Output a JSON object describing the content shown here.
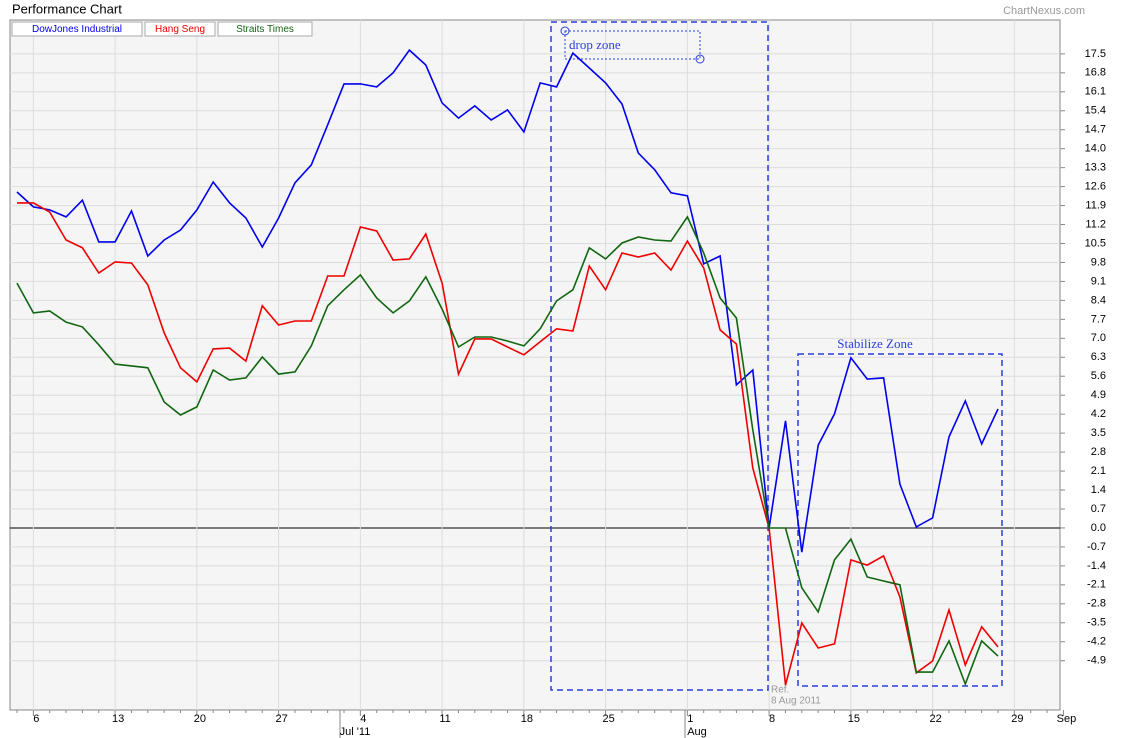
{
  "chart_data": {
    "type": "line",
    "title": "Performance Chart",
    "source": "ChartNexus.com",
    "categories": [
      null,
      "6",
      null,
      null,
      null,
      null,
      "13",
      null,
      null,
      null,
      null,
      "20",
      null,
      null,
      null,
      null,
      "27",
      null,
      null,
      null,
      null,
      "4",
      null,
      null,
      null,
      null,
      "11",
      null,
      null,
      null,
      null,
      "18",
      null,
      null,
      null,
      null,
      "25",
      null,
      null,
      null,
      null,
      "1",
      null,
      null,
      null,
      null,
      "8",
      null,
      null,
      null,
      null,
      "15",
      null,
      null,
      null,
      null,
      "22",
      null,
      null,
      null,
      null,
      "29",
      null,
      null,
      "Sep"
    ],
    "month_labels": [
      "Jul '11",
      "Aug"
    ],
    "series": [
      {
        "name": "DowJones Industrial",
        "color": "#0000ee",
        "values": [
          12.4,
          11.85,
          11.74,
          11.48,
          12.1,
          10.56,
          10.56,
          11.7,
          10.04,
          10.63,
          11.0,
          11.74,
          12.77,
          12.0,
          11.44,
          10.37,
          11.44,
          12.74,
          13.4,
          14.88,
          16.39,
          16.39,
          16.28,
          16.8,
          17.64,
          17.09,
          15.69,
          15.13,
          15.58,
          15.06,
          15.43,
          14.62,
          16.43,
          16.28,
          17.53,
          16.98,
          16.43,
          15.65,
          13.84,
          13.22,
          12.37,
          12.26,
          9.75,
          10.04,
          5.28,
          5.83,
          0,
          3.95,
          -0.89,
          3.06,
          4.21,
          6.28,
          5.5,
          5.54,
          1.62,
          0.04,
          0.37,
          3.36,
          4.69,
          3.1,
          4.39,
          null,
          null,
          null,
          null
        ]
      },
      {
        "name": "Hang Seng",
        "color": "#ee0000",
        "values": [
          12.0,
          12.0,
          11.66,
          10.63,
          10.34,
          9.41,
          9.82,
          9.78,
          8.97,
          7.2,
          5.91,
          5.39,
          6.61,
          6.64,
          6.16,
          8.2,
          7.49,
          7.64,
          7.64,
          9.3,
          9.3,
          11.11,
          10.96,
          9.89,
          9.93,
          10.85,
          9.04,
          5.68,
          6.98,
          6.98,
          6.68,
          6.39,
          6.87,
          7.35,
          7.27,
          9.67,
          8.79,
          10.15,
          10.0,
          10.15,
          9.52,
          10.59,
          9.6,
          7.31,
          6.79,
          2.21,
          0,
          -5.8,
          -3.51,
          -4.43,
          -4.28,
          -1.18,
          -1.37,
          -1.03,
          -2.55,
          -5.35,
          -4.91,
          -3.03,
          -5.06,
          -3.65,
          -4.39,
          null,
          null,
          null,
          null
        ]
      },
      {
        "name": "Straits Times",
        "color": "#116611",
        "values": [
          9.04,
          7.94,
          8.01,
          7.6,
          7.42,
          6.76,
          6.05,
          5.98,
          5.91,
          4.65,
          4.17,
          4.47,
          5.83,
          5.46,
          5.54,
          6.31,
          5.68,
          5.76,
          6.72,
          8.2,
          8.79,
          9.34,
          8.49,
          7.94,
          8.38,
          9.27,
          8.08,
          6.68,
          7.05,
          7.05,
          6.9,
          6.72,
          7.35,
          8.38,
          8.79,
          10.34,
          9.93,
          10.52,
          10.74,
          10.63,
          10.59,
          11.48,
          10.15,
          8.49,
          7.75,
          3.62,
          0,
          0,
          -2.21,
          -3.1,
          -1.18,
          -0.41,
          -1.81,
          -1.96,
          -2.1,
          -5.32,
          -5.32,
          -4.17,
          -5.76,
          -4.17,
          -4.73,
          null,
          null,
          null,
          null
        ]
      }
    ],
    "ylim": [
      -6.72,
      18.75
    ],
    "yticks": [
      17.5,
      16.8,
      16.1,
      15.4,
      14.7,
      {
        "value": 14,
        "label": "14.0"
      },
      13.3,
      12.6,
      11.9,
      11.2,
      10.5,
      9.8,
      9.1,
      8.4,
      7.7,
      {
        "value": 7,
        "label": "7.0"
      },
      6.3,
      5.6,
      4.9,
      4.2,
      3.5,
      2.8,
      2.1,
      1.4,
      0.7,
      {
        "value": 0,
        "label": "0.0"
      },
      -0.7,
      -1.4,
      -2.1,
      -2.8,
      -3.5,
      -4.2,
      -4.9
    ],
    "grid": true,
    "annotations": {
      "drop_zone": "drop zone",
      "stabilize_zone": "Stabilize Zone",
      "ref": "Ref.",
      "ref_date": "8 Aug 2011"
    }
  }
}
